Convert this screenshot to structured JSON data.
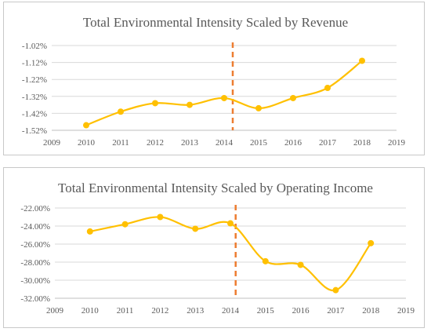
{
  "colors": {
    "series": "#ffc000",
    "marker_line": "#ed7d31",
    "grid": "#d9d9d9",
    "text": "#595959"
  },
  "chart_data": [
    {
      "type": "line",
      "title": "Total Environmental Intensity Scaled by Revenue",
      "xlabel": "",
      "ylabel": "",
      "x": [
        2010,
        2011,
        2012,
        2013,
        2014,
        2015,
        2016,
        2017,
        2018
      ],
      "series": [
        {
          "values": [
            -1.49,
            -1.41,
            -1.36,
            -1.37,
            -1.33,
            -1.39,
            -1.33,
            -1.27,
            -1.11
          ]
        }
      ],
      "xlim": [
        2009,
        2019
      ],
      "ylim": [
        -1.52,
        -1.02
      ],
      "x_ticks": [
        "2009",
        "2010",
        "2011",
        "2012",
        "2013",
        "2014",
        "2015",
        "2016",
        "2017",
        "2018",
        "2019"
      ],
      "y_ticks": [
        "-1.02%",
        "-1.12%",
        "-1.22%",
        "-1.32%",
        "-1.42%",
        "-1.52%"
      ],
      "vertical_marker_x": 2014.25,
      "grid": "horizontal",
      "legend": "none"
    },
    {
      "type": "line",
      "title": "Total Environmental Intensity Scaled by Operating Income",
      "xlabel": "",
      "ylabel": "",
      "x": [
        2010,
        2011,
        2012,
        2013,
        2014,
        2015,
        2016,
        2017,
        2018
      ],
      "series": [
        {
          "values": [
            -24.6,
            -23.8,
            -23.0,
            -24.3,
            -23.7,
            -27.9,
            -28.3,
            -31.1,
            -25.9
          ]
        }
      ],
      "xlim": [
        2009,
        2019
      ],
      "ylim": [
        -32,
        -22
      ],
      "x_ticks": [
        "2009",
        "2010",
        "2011",
        "2012",
        "2013",
        "2014",
        "2015",
        "2016",
        "2017",
        "2018",
        "2019"
      ],
      "y_ticks": [
        "-22.00%",
        "-24.00%",
        "-26.00%",
        "-28.00%",
        "-30.00%",
        "-32.00%"
      ],
      "vertical_marker_x": 2014.15,
      "grid": "horizontal",
      "legend": "none"
    }
  ]
}
